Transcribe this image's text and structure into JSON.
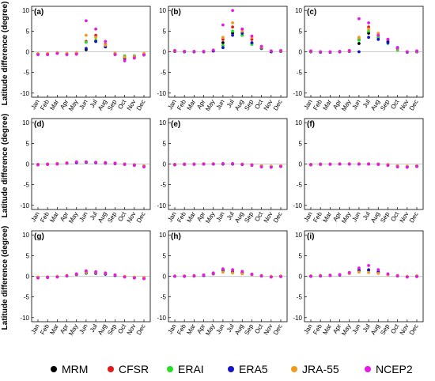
{
  "figure": {
    "ylabel": "Latitude difference (degree)",
    "legend": [
      {
        "name": "MRM",
        "color": "#000000"
      },
      {
        "name": "CFSR",
        "color": "#e31a1c"
      },
      {
        "name": "ERAI",
        "color": "#22e022"
      },
      {
        "name": "ERA5",
        "color": "#1414c8"
      },
      {
        "name": "JRA-55",
        "color": "#f39a1e"
      },
      {
        "name": "NCEP2",
        "color": "#e619e6"
      }
    ]
  },
  "chart_data": [
    {
      "type": "scatter",
      "panel": "(a)",
      "categories": [
        "Jan",
        "Feb",
        "Mar",
        "Apr",
        "May",
        "Jun",
        "Jul",
        "Aug",
        "Sep",
        "Oct",
        "Nov",
        "Dec"
      ],
      "ylim": [
        -11,
        11
      ],
      "yticks": [
        -10,
        -5,
        0,
        5,
        10
      ],
      "series": [
        {
          "name": "MRM",
          "values": [
            -0.5,
            -0.5,
            -0.3,
            -0.5,
            -0.4,
            0.5,
            2.5,
            1.2,
            -0.5,
            -1.2,
            -1.0,
            -0.5
          ]
        },
        {
          "name": "CFSR",
          "values": [
            -0.6,
            -0.6,
            -0.3,
            -0.6,
            -0.4,
            2.5,
            4.0,
            1.8,
            -0.6,
            -1.8,
            -1.5,
            -0.6
          ]
        },
        {
          "name": "ERAI",
          "values": [
            -0.5,
            -0.5,
            -0.3,
            -0.5,
            -0.3,
            2.3,
            2.8,
            1.3,
            -0.4,
            -1.0,
            -1.0,
            -0.5
          ]
        },
        {
          "name": "ERA5",
          "values": [
            -0.6,
            -0.5,
            -0.3,
            -0.6,
            -0.4,
            0.8,
            2.5,
            1.2,
            -0.5,
            -1.5,
            -1.2,
            -0.6
          ]
        },
        {
          "name": "JRA-55",
          "values": [
            -0.5,
            -0.4,
            -0.2,
            -0.4,
            -0.2,
            4.0,
            3.5,
            1.6,
            -0.3,
            -1.3,
            -1.2,
            -0.4
          ]
        },
        {
          "name": "NCEP2",
          "values": [
            -0.7,
            -0.7,
            -0.4,
            -0.7,
            -0.6,
            7.5,
            5.5,
            2.5,
            -0.7,
            -2.2,
            -1.5,
            -0.8
          ]
        }
      ]
    },
    {
      "type": "scatter",
      "panel": "(b)",
      "categories": [
        "Jan",
        "Feb",
        "Mar",
        "Apr",
        "May",
        "Jun",
        "Jul",
        "Aug",
        "Sep",
        "Oct",
        "Nov",
        "Dec"
      ],
      "ylim": [
        -11,
        11
      ],
      "yticks": [
        -10,
        -5,
        0,
        5,
        10
      ],
      "series": [
        {
          "name": "MRM",
          "values": [
            0.1,
            0.0,
            0.0,
            0.0,
            0.2,
            2.2,
            4.5,
            4.0,
            2.0,
            0.8,
            0.0,
            0.1
          ]
        },
        {
          "name": "CFSR",
          "values": [
            0.2,
            0.1,
            0.0,
            0.0,
            0.3,
            3.0,
            6.0,
            5.5,
            3.0,
            1.2,
            0.1,
            0.2
          ]
        },
        {
          "name": "ERAI",
          "values": [
            0.1,
            0.0,
            0.0,
            0.0,
            0.3,
            1.5,
            5.0,
            4.0,
            1.8,
            0.8,
            0.0,
            0.1
          ]
        },
        {
          "name": "ERA5",
          "values": [
            0.1,
            0.0,
            0.0,
            0.0,
            0.2,
            1.0,
            4.0,
            4.5,
            2.2,
            0.9,
            0.0,
            0.1
          ]
        },
        {
          "name": "JRA-55",
          "values": [
            0.2,
            0.1,
            0.1,
            0.1,
            0.4,
            3.5,
            7.0,
            5.0,
            3.5,
            1.1,
            0.2,
            0.2
          ]
        },
        {
          "name": "NCEP2",
          "values": [
            0.3,
            0.1,
            0.1,
            0.1,
            0.4,
            6.5,
            10.0,
            5.5,
            3.8,
            1.3,
            0.2,
            0.3
          ]
        }
      ]
    },
    {
      "type": "scatter",
      "panel": "(c)",
      "categories": [
        "Jan",
        "Feb",
        "Mar",
        "Apr",
        "May",
        "Jun",
        "Jul",
        "Aug",
        "Sep",
        "Oct",
        "Nov",
        "Dec"
      ],
      "ylim": [
        -11,
        11
      ],
      "yticks": [
        -10,
        -5,
        0,
        5,
        10
      ],
      "series": [
        {
          "name": "MRM",
          "values": [
            0.0,
            -0.1,
            -0.1,
            0.0,
            0.1,
            2.0,
            4.5,
            3.5,
            2.5,
            0.8,
            -0.1,
            0.0
          ]
        },
        {
          "name": "CFSR",
          "values": [
            0.1,
            0.0,
            -0.1,
            0.0,
            0.2,
            3.0,
            6.0,
            4.0,
            3.0,
            1.0,
            0.0,
            0.1
          ]
        },
        {
          "name": "ERAI",
          "values": [
            0.0,
            -0.1,
            -0.1,
            0.0,
            0.1,
            2.8,
            5.0,
            3.5,
            2.0,
            0.4,
            -0.1,
            0.0
          ]
        },
        {
          "name": "ERA5",
          "values": [
            0.0,
            -0.1,
            -0.1,
            0.0,
            0.1,
            0.0,
            3.5,
            3.0,
            2.2,
            1.0,
            -0.1,
            0.0
          ]
        },
        {
          "name": "JRA-55",
          "values": [
            0.1,
            0.0,
            0.0,
            0.1,
            0.2,
            3.5,
            5.5,
            4.5,
            3.0,
            0.8,
            0.0,
            0.1
          ]
        },
        {
          "name": "NCEP2",
          "values": [
            0.2,
            0.0,
            0.0,
            0.1,
            0.3,
            8.0,
            7.0,
            4.0,
            3.0,
            0.9,
            0.0,
            0.2
          ]
        }
      ]
    },
    {
      "type": "scatter",
      "panel": "(d)",
      "categories": [
        "Jan",
        "Feb",
        "Mar",
        "Apr",
        "May",
        "Jun",
        "Jul",
        "Aug",
        "Sep",
        "Oct",
        "Nov",
        "Dec"
      ],
      "ylim": [
        -11,
        11
      ],
      "yticks": [
        -10,
        -5,
        0,
        5,
        10
      ],
      "series": [
        {
          "name": "MRM",
          "values": [
            -0.1,
            0.0,
            0.1,
            0.2,
            0.4,
            0.4,
            0.3,
            0.3,
            0.2,
            0.0,
            -0.2,
            -0.5
          ]
        },
        {
          "name": "CFSR",
          "values": [
            -0.2,
            -0.1,
            0.0,
            0.2,
            0.4,
            0.5,
            0.4,
            0.3,
            0.1,
            -0.1,
            -0.3,
            -0.6
          ]
        },
        {
          "name": "ERAI",
          "values": [
            -0.1,
            0.0,
            0.1,
            0.2,
            0.4,
            0.4,
            0.3,
            0.3,
            0.2,
            0.0,
            -0.2,
            -0.5
          ]
        },
        {
          "name": "ERA5",
          "values": [
            -0.1,
            0.0,
            0.1,
            0.2,
            0.3,
            0.4,
            0.3,
            0.2,
            0.1,
            0.0,
            -0.2,
            -0.5
          ]
        },
        {
          "name": "JRA-55",
          "values": [
            -0.1,
            0.0,
            0.1,
            0.3,
            0.5,
            0.5,
            0.4,
            0.4,
            0.2,
            0.0,
            -0.2,
            -0.4
          ]
        },
        {
          "name": "NCEP2",
          "values": [
            -0.2,
            -0.1,
            0.0,
            0.2,
            0.5,
            0.5,
            0.4,
            0.3,
            0.2,
            -0.1,
            -0.3,
            -0.7
          ]
        }
      ]
    },
    {
      "type": "scatter",
      "panel": "(e)",
      "categories": [
        "Jan",
        "Feb",
        "Mar",
        "Apr",
        "May",
        "Jun",
        "Jul",
        "Aug",
        "Sep",
        "Oct",
        "Nov",
        "Dec"
      ],
      "ylim": [
        -11,
        11
      ],
      "yticks": [
        -10,
        -5,
        0,
        5,
        10
      ],
      "series": [
        {
          "name": "MRM",
          "values": [
            -0.1,
            0.0,
            0.0,
            0.0,
            0.0,
            0.0,
            0.0,
            -0.1,
            -0.2,
            -0.5,
            -0.6,
            -0.5
          ]
        },
        {
          "name": "CFSR",
          "values": [
            -0.2,
            -0.1,
            0.0,
            0.0,
            0.0,
            0.1,
            0.1,
            -0.1,
            -0.3,
            -0.6,
            -0.7,
            -0.6
          ]
        },
        {
          "name": "ERAI",
          "values": [
            -0.1,
            0.0,
            0.0,
            0.0,
            0.0,
            0.0,
            0.0,
            -0.1,
            -0.2,
            -0.5,
            -0.6,
            -0.5
          ]
        },
        {
          "name": "ERA5",
          "values": [
            -0.1,
            0.0,
            0.0,
            0.0,
            0.0,
            0.0,
            0.0,
            -0.1,
            -0.2,
            -0.5,
            -0.6,
            -0.5
          ]
        },
        {
          "name": "JRA-55",
          "values": [
            -0.1,
            0.0,
            0.0,
            0.1,
            0.1,
            0.1,
            0.1,
            0.0,
            -0.2,
            -0.4,
            -0.5,
            -0.4
          ]
        },
        {
          "name": "NCEP2",
          "values": [
            -0.2,
            -0.1,
            -0.1,
            0.0,
            0.0,
            0.1,
            0.1,
            -0.1,
            -0.3,
            -0.7,
            -0.8,
            -0.6
          ]
        }
      ]
    },
    {
      "type": "scatter",
      "panel": "(f)",
      "categories": [
        "Jan",
        "Feb",
        "Mar",
        "Apr",
        "May",
        "Jun",
        "Jul",
        "Aug",
        "Sep",
        "Oct",
        "Nov",
        "Dec"
      ],
      "ylim": [
        -11,
        11
      ],
      "yticks": [
        -10,
        -5,
        0,
        5,
        10
      ],
      "series": [
        {
          "name": "MRM",
          "values": [
            -0.1,
            0.0,
            0.0,
            0.0,
            0.0,
            0.0,
            0.0,
            0.0,
            -0.2,
            -0.5,
            -0.6,
            -0.5
          ]
        },
        {
          "name": "CFSR",
          "values": [
            -0.2,
            -0.1,
            0.0,
            0.0,
            0.0,
            0.0,
            0.0,
            -0.1,
            -0.3,
            -0.6,
            -0.7,
            -0.6
          ]
        },
        {
          "name": "ERAI",
          "values": [
            -0.1,
            0.0,
            0.0,
            0.0,
            0.0,
            0.0,
            0.0,
            0.0,
            -0.2,
            -0.5,
            -0.6,
            -0.5
          ]
        },
        {
          "name": "ERA5",
          "values": [
            -0.1,
            0.0,
            0.0,
            0.0,
            0.0,
            0.0,
            0.0,
            0.0,
            -0.2,
            -0.5,
            -0.6,
            -0.5
          ]
        },
        {
          "name": "JRA-55",
          "values": [
            -0.1,
            0.0,
            0.0,
            0.1,
            0.1,
            0.1,
            0.1,
            0.0,
            -0.1,
            -0.4,
            -0.5,
            -0.4
          ]
        },
        {
          "name": "NCEP2",
          "values": [
            -0.2,
            -0.1,
            -0.1,
            0.0,
            0.0,
            0.0,
            0.0,
            -0.1,
            -0.3,
            -0.7,
            -0.8,
            -0.6
          ]
        }
      ]
    },
    {
      "type": "scatter",
      "panel": "(g)",
      "categories": [
        "Jan",
        "Feb",
        "Mar",
        "Apr",
        "May",
        "Jun",
        "Jul",
        "Aug",
        "Sep",
        "Oct",
        "Nov",
        "Dec"
      ],
      "ylim": [
        -11,
        11
      ],
      "yticks": [
        -10,
        -5,
        0,
        5,
        10
      ],
      "series": [
        {
          "name": "MRM",
          "values": [
            -0.3,
            -0.2,
            -0.1,
            0.1,
            0.4,
            0.8,
            0.8,
            0.6,
            0.2,
            -0.1,
            -0.3,
            -0.4
          ]
        },
        {
          "name": "CFSR",
          "values": [
            -0.4,
            -0.3,
            -0.1,
            0.1,
            0.5,
            1.0,
            0.9,
            0.7,
            0.3,
            -0.1,
            -0.4,
            -0.5
          ]
        },
        {
          "name": "ERAI",
          "values": [
            -0.3,
            -0.2,
            -0.1,
            0.1,
            0.4,
            0.7,
            0.7,
            0.5,
            0.2,
            -0.1,
            -0.3,
            -0.4
          ]
        },
        {
          "name": "ERA5",
          "values": [
            -0.3,
            -0.2,
            -0.1,
            0.1,
            0.4,
            0.8,
            0.7,
            0.5,
            0.2,
            -0.1,
            -0.3,
            -0.4
          ]
        },
        {
          "name": "JRA-55",
          "values": [
            -0.2,
            -0.2,
            0.0,
            0.2,
            0.5,
            0.9,
            0.9,
            0.7,
            0.3,
            0.0,
            -0.2,
            -0.3
          ]
        },
        {
          "name": "NCEP2",
          "values": [
            -0.4,
            -0.3,
            -0.2,
            0.1,
            0.6,
            1.3,
            1.1,
            0.8,
            0.3,
            -0.2,
            -0.4,
            -0.6
          ]
        }
      ]
    },
    {
      "type": "scatter",
      "panel": "(h)",
      "categories": [
        "Jan",
        "Feb",
        "Mar",
        "Apr",
        "May",
        "Jun",
        "Jul",
        "Aug",
        "Sep",
        "Oct",
        "Nov",
        "Dec"
      ],
      "ylim": [
        -11,
        11
      ],
      "yticks": [
        -10,
        -5,
        0,
        5,
        10
      ],
      "series": [
        {
          "name": "MRM",
          "values": [
            0.0,
            0.0,
            0.1,
            0.2,
            0.6,
            1.2,
            1.0,
            0.8,
            0.4,
            0.1,
            -0.1,
            0.0
          ]
        },
        {
          "name": "CFSR",
          "values": [
            0.0,
            0.0,
            0.1,
            0.3,
            0.7,
            1.4,
            1.2,
            0.9,
            0.5,
            0.1,
            -0.1,
            0.0
          ]
        },
        {
          "name": "ERAI",
          "values": [
            0.0,
            0.0,
            0.1,
            0.2,
            0.6,
            1.2,
            1.0,
            0.8,
            0.4,
            0.1,
            -0.1,
            0.0
          ]
        },
        {
          "name": "ERA5",
          "values": [
            0.0,
            0.0,
            0.1,
            0.2,
            0.6,
            1.5,
            1.0,
            0.8,
            0.4,
            0.1,
            -0.1,
            0.0
          ]
        },
        {
          "name": "JRA-55",
          "values": [
            0.1,
            0.1,
            0.2,
            0.3,
            0.7,
            1.0,
            0.8,
            0.6,
            0.4,
            0.2,
            0.0,
            0.1
          ]
        },
        {
          "name": "NCEP2",
          "values": [
            0.0,
            0.0,
            0.1,
            0.3,
            0.8,
            1.8,
            1.6,
            1.2,
            0.5,
            0.1,
            -0.2,
            -0.1
          ]
        }
      ]
    },
    {
      "type": "scatter",
      "panel": "(i)",
      "categories": [
        "Jan",
        "Feb",
        "Mar",
        "Apr",
        "May",
        "Jun",
        "Jul",
        "Aug",
        "Sep",
        "Oct",
        "Nov",
        "Dec"
      ],
      "ylim": [
        -11,
        11
      ],
      "yticks": [
        -10,
        -5,
        0,
        5,
        10
      ],
      "series": [
        {
          "name": "MRM",
          "values": [
            0.0,
            0.1,
            0.2,
            0.3,
            0.7,
            1.3,
            1.4,
            1.0,
            0.4,
            0.1,
            -0.1,
            0.0
          ]
        },
        {
          "name": "CFSR",
          "values": [
            0.1,
            0.1,
            0.2,
            0.4,
            0.8,
            1.5,
            1.6,
            1.1,
            0.5,
            0.1,
            -0.1,
            0.1
          ]
        },
        {
          "name": "ERAI",
          "values": [
            0.0,
            0.1,
            0.2,
            0.3,
            0.7,
            1.3,
            1.4,
            1.0,
            0.4,
            0.1,
            -0.1,
            0.0
          ]
        },
        {
          "name": "ERA5",
          "values": [
            0.0,
            0.1,
            0.2,
            0.3,
            0.7,
            1.5,
            1.5,
            1.0,
            0.4,
            0.1,
            -0.1,
            0.0
          ]
        },
        {
          "name": "JRA-55",
          "values": [
            0.1,
            0.2,
            0.3,
            0.4,
            0.7,
            1.0,
            0.9,
            0.7,
            0.4,
            0.2,
            0.0,
            0.1
          ]
        },
        {
          "name": "NCEP2",
          "values": [
            0.0,
            0.1,
            0.2,
            0.4,
            0.9,
            2.0,
            2.6,
            1.6,
            0.6,
            0.1,
            -0.2,
            -0.1
          ]
        }
      ]
    }
  ]
}
